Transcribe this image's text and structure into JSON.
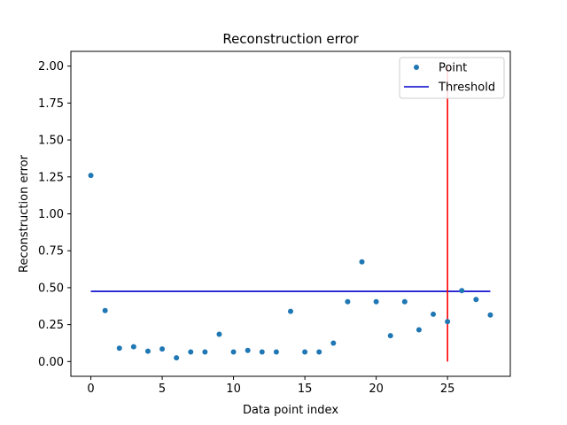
{
  "chart_data": {
    "type": "scatter",
    "title": "Reconstruction error",
    "xlabel": "Data point index",
    "ylabel": "Reconstruction error",
    "xlim": [
      -1.4,
      29.4
    ],
    "ylim": [
      -0.1,
      2.1
    ],
    "xticks": [
      0,
      5,
      10,
      15,
      20,
      25
    ],
    "yticks": [
      0.0,
      0.25,
      0.5,
      0.75,
      1.0,
      1.25,
      1.5,
      1.75,
      2.0
    ],
    "ytick_labels": [
      "0.00",
      "0.25",
      "0.50",
      "0.75",
      "1.00",
      "1.25",
      "1.50",
      "1.75",
      "2.00"
    ],
    "series": [
      {
        "name": "Point",
        "color": "#1f77b4",
        "x": [
          0,
          1,
          2,
          3,
          4,
          5,
          6,
          7,
          8,
          9,
          10,
          11,
          12,
          13,
          14,
          15,
          16,
          17,
          18,
          19,
          20,
          21,
          22,
          23,
          24,
          25,
          26,
          27,
          28
        ],
        "y": [
          1.26,
          0.345,
          0.09,
          0.1,
          0.07,
          0.085,
          0.025,
          0.065,
          0.065,
          0.185,
          0.065,
          0.075,
          0.065,
          0.065,
          0.34,
          0.065,
          0.065,
          0.125,
          0.405,
          0.675,
          0.405,
          0.175,
          0.405,
          0.215,
          0.32,
          0.27,
          0.48,
          0.42,
          0.315
        ]
      }
    ],
    "threshold": {
      "name": "Threshold",
      "color": "#0000cc",
      "y": 0.475,
      "x_from": 0,
      "x_to": 28
    },
    "vline": {
      "color": "#ff0000",
      "x": 25,
      "y_from": 0,
      "y_to": 2.0
    },
    "legend": {
      "position": "top-right",
      "entries": [
        "Point",
        "Threshold"
      ]
    },
    "grid": false
  }
}
